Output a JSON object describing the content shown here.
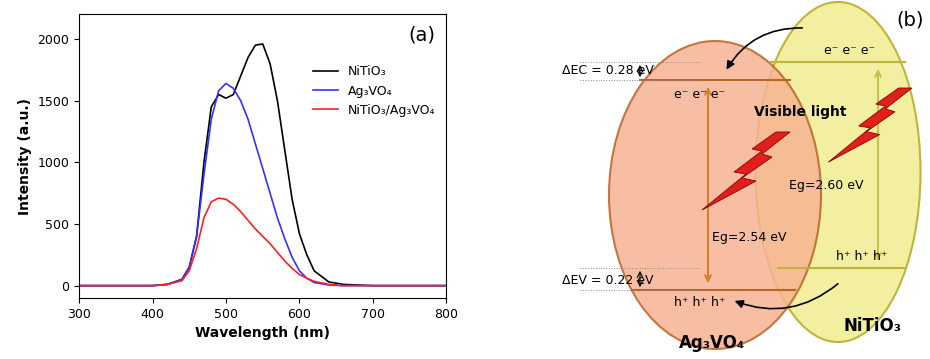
{
  "chart_data": {
    "type": "line",
    "title": "(a)",
    "x_label": "Wavelength (nm)",
    "y_label": "Intensity (a.u.)",
    "x": [
      300,
      350,
      400,
      420,
      440,
      450,
      460,
      470,
      480,
      490,
      500,
      510,
      520,
      530,
      540,
      550,
      560,
      570,
      580,
      590,
      600,
      610,
      620,
      640,
      660,
      700,
      750,
      800
    ],
    "series": [
      {
        "name": "NiTiO₃",
        "color": "#000000",
        "values": [
          0,
          0,
          0,
          10,
          50,
          150,
          400,
          1000,
          1450,
          1550,
          1520,
          1550,
          1700,
          1850,
          1950,
          1960,
          1800,
          1500,
          1100,
          700,
          420,
          250,
          120,
          30,
          10,
          0,
          0,
          0
        ]
      },
      {
        "name": "Ag₃VO₄",
        "color": "#3333ff",
        "values": [
          0,
          0,
          0,
          10,
          50,
          150,
          400,
          900,
          1350,
          1580,
          1640,
          1600,
          1500,
          1350,
          1150,
          950,
          750,
          550,
          380,
          230,
          120,
          60,
          25,
          5,
          0,
          0,
          0,
          0
        ]
      },
      {
        "name": "NiTiO₃/Ag₃VO₄",
        "color": "#ff2020",
        "values": [
          0,
          0,
          0,
          10,
          40,
          120,
          300,
          550,
          680,
          710,
          700,
          660,
          600,
          530,
          460,
          400,
          340,
          270,
          200,
          140,
          90,
          60,
          35,
          10,
          0,
          0,
          0,
          0
        ]
      }
    ],
    "xlim": [
      300,
      800
    ],
    "xticks": [
      300,
      400,
      500,
      600,
      700,
      800
    ],
    "ylim": [
      -100,
      2200
    ],
    "yticks": [
      0,
      500,
      1000,
      1500,
      2000
    ],
    "legend": "upper right"
  },
  "diagram": {
    "panel_label": "(b)",
    "conduction_offset": "ΔEC = 0.28 eV",
    "valence_offset": "ΔEV = 0.22 eV",
    "electrons": "e⁻ e⁻ e⁻",
    "holes": "h⁺ h⁺ h⁺",
    "light": "Visible light",
    "gap_left": "Eg=2.54 eV",
    "gap_right": "Eg=2.60 eV",
    "left_material": "Ag₃VO₄",
    "right_material": "NiTiO₃"
  }
}
